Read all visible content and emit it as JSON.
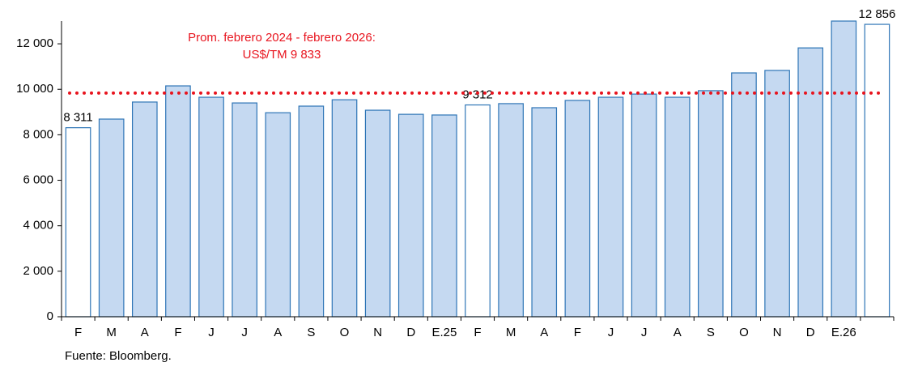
{
  "chart_data": {
    "type": "bar",
    "categories": [
      "F",
      "M",
      "A",
      "F",
      "J",
      "J",
      "A",
      "S",
      "O",
      "N",
      "D",
      "E.25",
      "F",
      "M",
      "A",
      "F",
      "J",
      "J",
      "A",
      "S",
      "O",
      "N",
      "D",
      "E.26",
      null
    ],
    "values": [
      8311,
      8690,
      9440,
      10150,
      9650,
      9400,
      8970,
      9260,
      9540,
      9080,
      8900,
      8870,
      9312,
      9370,
      9190,
      9510,
      9650,
      9790,
      9650,
      9940,
      10720,
      10830,
      11820,
      13000,
      12856
    ],
    "value_labels": [
      "8 311",
      null,
      null,
      null,
      null,
      null,
      null,
      null,
      null,
      null,
      null,
      null,
      "9 312",
      null,
      null,
      null,
      null,
      null,
      null,
      null,
      null,
      null,
      null,
      null,
      "12 856"
    ],
    "bar_colors": [
      "#ffffff",
      "#c5d9f1",
      "#c5d9f1",
      "#c5d9f1",
      "#c5d9f1",
      "#c5d9f1",
      "#c5d9f1",
      "#c5d9f1",
      "#c5d9f1",
      "#c5d9f1",
      "#c5d9f1",
      "#c5d9f1",
      "#ffffff",
      "#c5d9f1",
      "#c5d9f1",
      "#c5d9f1",
      "#c5d9f1",
      "#c5d9f1",
      "#c5d9f1",
      "#c5d9f1",
      "#c5d9f1",
      "#c5d9f1",
      "#c5d9f1",
      "#c5d9f1",
      "#ffffff"
    ],
    "edge_color": "#2e75b6",
    "ylim": [
      0,
      13000
    ],
    "yticks": [
      0,
      {
        "value": 2000,
        "label": "2 000"
      },
      {
        "value": 4000,
        "label": "4 000"
      },
      {
        "value": 6000,
        "label": "6 000"
      },
      {
        "value": 8000,
        "label": "8 000"
      },
      {
        "value": 10000,
        "label": "10 000"
      },
      {
        "value": 12000,
        "label": "12 000"
      }
    ],
    "reference_line": {
      "value": 9833,
      "color": "#e8141e",
      "label": [
        "Prom. febrero 2024 - febrero 2026:",
        "US$/TM 9 833"
      ]
    },
    "source": "Fuente: Bloomberg."
  }
}
